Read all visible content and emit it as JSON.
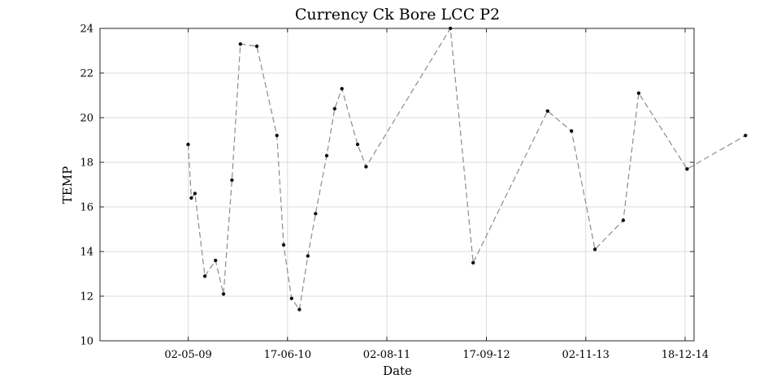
{
  "chart_data": {
    "type": "line",
    "title": "Currency Ck Bore LCC P2",
    "xlabel": "Date",
    "ylabel": "TEMP",
    "xlim": [
      "2008-05-02",
      "2015-01-24"
    ],
    "ylim": [
      10,
      24
    ],
    "x_ticks": [
      {
        "date": "2009-05-02",
        "label": "02-05-09"
      },
      {
        "date": "2010-06-17",
        "label": "17-06-10"
      },
      {
        "date": "2011-08-02",
        "label": "02-08-11"
      },
      {
        "date": "2012-09-17",
        "label": "17-09-12"
      },
      {
        "date": "2013-11-02",
        "label": "02-11-13"
      },
      {
        "date": "2014-12-18",
        "label": "18-12-14"
      }
    ],
    "y_ticks": [
      10,
      12,
      14,
      16,
      18,
      20,
      22,
      24
    ],
    "grid": true,
    "line_style": "dashed",
    "line_color": "#8c8c8c",
    "marker_color": "#111111",
    "series": [
      {
        "points": [
          {
            "x": "2009-05-02",
            "y": 18.8
          },
          {
            "x": "2009-05-15",
            "y": 16.4
          },
          {
            "x": "2009-05-30",
            "y": 16.6
          },
          {
            "x": "2009-07-10",
            "y": 12.9
          },
          {
            "x": "2009-08-23",
            "y": 13.6
          },
          {
            "x": "2009-09-25",
            "y": 12.1
          },
          {
            "x": "2009-10-30",
            "y": 17.2
          },
          {
            "x": "2009-12-04",
            "y": 23.3
          },
          {
            "x": "2010-02-10",
            "y": 23.2
          },
          {
            "x": "2010-05-04",
            "y": 19.2
          },
          {
            "x": "2010-06-01",
            "y": 14.3
          },
          {
            "x": "2010-07-04",
            "y": 11.9
          },
          {
            "x": "2010-08-05",
            "y": 11.4
          },
          {
            "x": "2010-09-09",
            "y": 13.8
          },
          {
            "x": "2010-10-11",
            "y": 15.7
          },
          {
            "x": "2010-11-26",
            "y": 18.3
          },
          {
            "x": "2010-12-29",
            "y": 20.4
          },
          {
            "x": "2011-01-28",
            "y": 21.3
          },
          {
            "x": "2011-04-03",
            "y": 18.8
          },
          {
            "x": "2011-05-08",
            "y": 17.8
          },
          {
            "x": "2012-04-21",
            "y": 24.0
          },
          {
            "x": "2012-07-24",
            "y": 13.5
          },
          {
            "x": "2013-05-28",
            "y": 20.3
          },
          {
            "x": "2013-09-04",
            "y": 19.4
          },
          {
            "x": "2013-12-10",
            "y": 14.1
          },
          {
            "x": "2014-04-06",
            "y": 15.4
          },
          {
            "x": "2014-06-09",
            "y": 21.1
          },
          {
            "x": "2014-12-26",
            "y": 17.7
          },
          {
            "x": "2015-08-25",
            "y": 19.2
          }
        ]
      }
    ]
  }
}
